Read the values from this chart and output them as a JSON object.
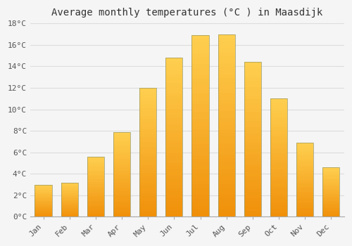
{
  "title": "Average monthly temperatures (°C ) in Maasdijk",
  "months": [
    "Jan",
    "Feb",
    "Mar",
    "Apr",
    "May",
    "Jun",
    "Jul",
    "Aug",
    "Sep",
    "Oct",
    "Nov",
    "Dec"
  ],
  "values": [
    3.0,
    3.2,
    5.6,
    7.9,
    12.0,
    14.8,
    16.9,
    17.0,
    14.4,
    11.0,
    6.9,
    4.6
  ],
  "bar_color_top": "#FFD050",
  "bar_color_bottom": "#F0900A",
  "bar_edge_color": "#888800",
  "ylim": [
    0,
    18
  ],
  "yticks": [
    0,
    2,
    4,
    6,
    8,
    10,
    12,
    14,
    16,
    18
  ],
  "ytick_labels": [
    "0°C",
    "2°C",
    "4°C",
    "6°C",
    "8°C",
    "10°C",
    "12°C",
    "14°C",
    "16°C",
    "18°C"
  ],
  "grid_color": "#dddddd",
  "background_color": "#f5f5f5",
  "title_fontsize": 10,
  "tick_fontsize": 8,
  "bar_width": 0.65,
  "figsize": [
    5.0,
    3.5
  ],
  "dpi": 100
}
